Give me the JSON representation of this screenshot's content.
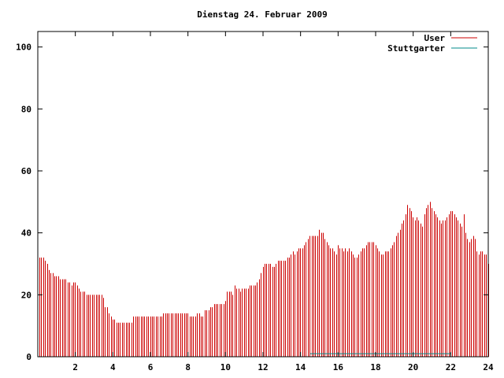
{
  "chart_data": {
    "type": "bar",
    "title": "Dienstag 24. Februar 2009",
    "xlabel": "",
    "ylabel": "",
    "xlim": [
      0,
      24
    ],
    "ylim": [
      0,
      105
    ],
    "x_ticks": [
      2,
      4,
      6,
      8,
      10,
      12,
      14,
      16,
      18,
      20,
      22,
      24
    ],
    "y_ticks": [
      0,
      20,
      40,
      60,
      80,
      100
    ],
    "grid": false,
    "legend_position": "top-right",
    "series": [
      {
        "name": "User",
        "color": "#cc0000",
        "x": [
          0.0,
          0.1,
          0.2,
          0.3,
          0.4,
          0.5,
          0.6,
          0.7,
          0.8,
          0.9,
          1.0,
          1.1,
          1.2,
          1.3,
          1.4,
          1.5,
          1.6,
          1.7,
          1.8,
          1.9,
          2.0,
          2.1,
          2.2,
          2.3,
          2.4,
          2.5,
          2.6,
          2.7,
          2.8,
          2.9,
          3.0,
          3.1,
          3.2,
          3.3,
          3.4,
          3.5,
          3.6,
          3.7,
          3.8,
          3.9,
          4.0,
          4.1,
          4.2,
          4.3,
          4.4,
          4.5,
          4.6,
          4.7,
          4.8,
          4.9,
          5.0,
          5.1,
          5.2,
          5.3,
          5.4,
          5.5,
          5.6,
          5.7,
          5.8,
          5.9,
          6.0,
          6.1,
          6.2,
          6.3,
          6.4,
          6.5,
          6.6,
          6.7,
          6.8,
          6.9,
          7.0,
          7.1,
          7.2,
          7.3,
          7.4,
          7.5,
          7.6,
          7.7,
          7.8,
          7.9,
          8.0,
          8.1,
          8.2,
          8.3,
          8.4,
          8.5,
          8.6,
          8.7,
          8.8,
          8.9,
          9.0,
          9.1,
          9.2,
          9.3,
          9.4,
          9.5,
          9.6,
          9.7,
          9.8,
          9.9,
          10.0,
          10.1,
          10.2,
          10.3,
          10.4,
          10.5,
          10.6,
          10.7,
          10.8,
          10.9,
          11.0,
          11.1,
          11.2,
          11.3,
          11.4,
          11.5,
          11.6,
          11.7,
          11.8,
          11.9,
          12.0,
          12.1,
          12.2,
          12.3,
          12.4,
          12.5,
          12.6,
          12.7,
          12.8,
          12.9,
          13.0,
          13.1,
          13.2,
          13.3,
          13.4,
          13.5,
          13.6,
          13.7,
          13.8,
          13.9,
          14.0,
          14.1,
          14.2,
          14.3,
          14.4,
          14.5,
          14.6,
          14.7,
          14.8,
          14.9,
          15.0,
          15.1,
          15.2,
          15.3,
          15.4,
          15.5,
          15.6,
          15.7,
          15.8,
          15.9,
          16.0,
          16.1,
          16.2,
          16.3,
          16.4,
          16.5,
          16.6,
          16.7,
          16.8,
          16.9,
          17.0,
          17.1,
          17.2,
          17.3,
          17.4,
          17.5,
          17.6,
          17.7,
          17.8,
          17.9,
          18.0,
          18.1,
          18.2,
          18.3,
          18.4,
          18.5,
          18.6,
          18.7,
          18.8,
          18.9,
          19.0,
          19.1,
          19.2,
          19.3,
          19.4,
          19.5,
          19.6,
          19.7,
          19.8,
          19.9,
          20.0,
          20.1,
          20.2,
          20.3,
          20.4,
          20.5,
          20.6,
          20.7,
          20.8,
          20.9,
          21.0,
          21.1,
          21.2,
          21.3,
          21.4,
          21.5,
          21.6,
          21.7,
          21.8,
          21.9,
          22.0,
          22.1,
          22.2,
          22.3,
          22.4,
          22.5,
          22.6,
          22.7,
          22.8,
          22.9,
          23.0,
          23.1,
          23.2,
          23.3,
          23.4,
          23.5,
          23.6,
          23.7,
          23.8,
          23.9
        ],
        "values": [
          32,
          32,
          32,
          31,
          30,
          28,
          27,
          27,
          26,
          26,
          26,
          25,
          25,
          25,
          25,
          24,
          24,
          23,
          24,
          24,
          23,
          22,
          21,
          21,
          21,
          20,
          20,
          20,
          20,
          20,
          20,
          20,
          20,
          20,
          19,
          16,
          16,
          14,
          13,
          12,
          12,
          11,
          11,
          11,
          11,
          11,
          11,
          11,
          11,
          11,
          13,
          13,
          13,
          13,
          13,
          13,
          13,
          13,
          13,
          13,
          13,
          13,
          13,
          13,
          13,
          13,
          14,
          14,
          14,
          14,
          14,
          14,
          14,
          14,
          14,
          14,
          14,
          14,
          14,
          14,
          13,
          13,
          13,
          13,
          14,
          14,
          13,
          13,
          15,
          15,
          15,
          16,
          16,
          17,
          17,
          17,
          17,
          17,
          17,
          18,
          21,
          21,
          21,
          20,
          23,
          22,
          22,
          21,
          22,
          22,
          22,
          22,
          23,
          23,
          23,
          23,
          24,
          25,
          27,
          29,
          30,
          30,
          30,
          30,
          29,
          29,
          30,
          31,
          31,
          31,
          31,
          31,
          32,
          32,
          33,
          34,
          33,
          34,
          35,
          35,
          35,
          36,
          37,
          38,
          39,
          39,
          39,
          39,
          39,
          41,
          40,
          40,
          38,
          37,
          36,
          35,
          35,
          34,
          33,
          36,
          35,
          35,
          34,
          35,
          34,
          35,
          34,
          33,
          32,
          32,
          33,
          34,
          35,
          35,
          36,
          37,
          37,
          37,
          37,
          36,
          35,
          34,
          33,
          33,
          34,
          34,
          34,
          35,
          36,
          37,
          39,
          40,
          41,
          43,
          44,
          46,
          49,
          48,
          47,
          45,
          44,
          45,
          44,
          43,
          42,
          46,
          48,
          49,
          50,
          48,
          47,
          46,
          45,
          44,
          43,
          44,
          44,
          45,
          46,
          47,
          47,
          46,
          45,
          44,
          43,
          42,
          46,
          40,
          38,
          37,
          38,
          39,
          38,
          34,
          33,
          34,
          34,
          33,
          33,
          30
        ]
      },
      {
        "name": "Stuttgarter",
        "color": "#008b8b",
        "x": [
          14.5,
          22.0
        ],
        "values": [
          1,
          1
        ]
      }
    ]
  }
}
